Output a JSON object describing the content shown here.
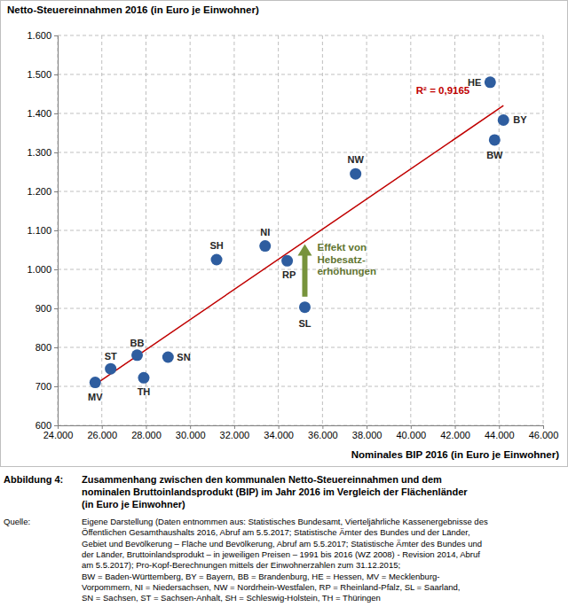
{
  "chart_data": {
    "type": "scatter",
    "title": "Netto-Steuereinnahmen 2016 (in Euro je Einwohner)",
    "x_label": "Nominales BIP 2016 (in Euro je Einwohner)",
    "labels": [
      "MV",
      "ST",
      "BB",
      "TH",
      "SN",
      "SH",
      "NI",
      "RP",
      "SL",
      "NW",
      "HE",
      "BW",
      "BY"
    ],
    "x": [
      25700,
      26400,
      27600,
      27900,
      29000,
      31200,
      33400,
      34400,
      35200,
      37500,
      43600,
      43800,
      44200
    ],
    "values": [
      710,
      745,
      780,
      722,
      775,
      1025,
      1060,
      1022,
      903,
      1245,
      1480,
      1332,
      1383
    ],
    "color": "#2e5d9f",
    "marker": "circle",
    "grid": true,
    "xlim": [
      24000,
      46000
    ],
    "xticks": [
      {
        "value": 24000,
        "label": "24.000"
      },
      {
        "value": 26000,
        "label": "26.000"
      },
      {
        "value": 28000,
        "label": "28.000"
      },
      {
        "value": 30000,
        "label": "30.000"
      },
      {
        "value": 32000,
        "label": "32.000"
      },
      {
        "value": 34000,
        "label": "34.000"
      },
      {
        "value": 36000,
        "label": "36.000"
      },
      {
        "value": 38000,
        "label": "38.000"
      },
      {
        "value": 40000,
        "label": "40.000"
      },
      {
        "value": 42000,
        "label": "42.000"
      },
      {
        "value": 44000,
        "label": "44.000"
      },
      {
        "value": 46000,
        "label": "46.000"
      }
    ],
    "ylim": [
      600,
      1600
    ],
    "yticks": [
      600,
      700,
      800,
      900,
      {
        "value": 1000,
        "label": "1.000"
      },
      {
        "value": 1100,
        "label": "1.100"
      },
      {
        "value": 1200,
        "label": "1.200"
      },
      {
        "value": 1300,
        "label": "1.300"
      },
      {
        "value": 1400,
        "label": "1.400"
      },
      {
        "value": 1500,
        "label": "1.500"
      },
      {
        "value": 1600,
        "label": "1.600"
      }
    ],
    "trendline": {
      "x": [
        25700,
        44200
      ],
      "values": [
        705,
        1420
      ],
      "color": "#c00000",
      "label": "R² = 0,9165"
    },
    "annotation": {
      "text": [
        "Effekt von",
        "Hebesatz-",
        "erhöhungen"
      ],
      "x": 35200,
      "y_from": 930,
      "y_to": 1065,
      "color": "#77933c"
    }
  },
  "caption": {
    "label": "Abbildung 4:",
    "lines": [
      "Zusammenhang zwischen den kommunalen Netto-Steuereinnahmen und dem",
      "nominalen Bruttoinlandsprodukt (BIP) im Jahr 2016 im Vergleich der Flächenländer",
      "(in Euro je Einwohner)"
    ]
  },
  "source": {
    "label": "Quelle:",
    "lines": [
      "Eigene Darstellung (Daten entnommen aus: Statistisches Bundesamt, Vierteljährliche Kassenergebnisse des",
      "Öffentlichen Gesamthaushalts 2016, Abruf am 5.5.2017; Statistische Ämter des Bundes und der Länder,",
      "Gebiet und Bevölkerung – Fläche und Bevölkerung, Abruf am 5.5.2017; Statistische Ämter des Bundes und",
      "der Länder, Bruttoinlandsprodukt – in jeweiligen Preisen – 1991 bis 2016 (WZ 2008) - Revision 2014, Abruf",
      "am 5.5.2017); Pro-Kopf-Berechnungen mittels der Einwohnerzahlen zum 31.12.2015;",
      "BW = Baden-Württemberg, BY = Bayern, BB = Brandenburg, HE = Hessen, MV = Mecklenburg-",
      "Vorpommern, NI = Niedersachsen, NW = Nordrhein-Westfalen, RP = Rheinland-Pfalz, SL = Saarland,",
      "SN = Sachsen, ST = Sachsen-Anhalt, SH = Schleswig-Holstein, TH = Thüringen"
    ]
  }
}
